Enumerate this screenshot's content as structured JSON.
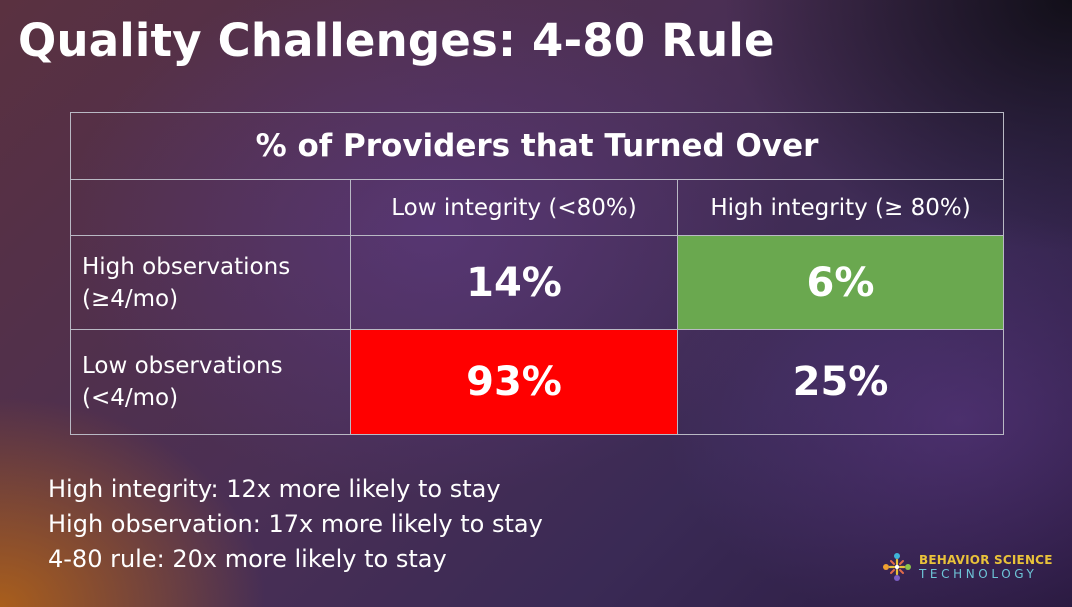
{
  "title": "Quality Challenges: 4-80 Rule",
  "table": {
    "heading": "% of Providers that Turned Over",
    "columns": [
      "Low integrity (<80%)",
      "High integrity (≥ 80%)"
    ],
    "rows": [
      {
        "label_line1": "High observations",
        "label_line2": "(≥4/mo)",
        "values": [
          "14%",
          "6%"
        ]
      },
      {
        "label_line1": "Low observations",
        "label_line2": "(<4/mo)",
        "values": [
          "93%",
          "25%"
        ]
      }
    ],
    "highlight_colors": {
      "green": "#6aa84f",
      "red": "#ff0000"
    }
  },
  "stats": [
    "High integrity: 12x more likely to stay",
    "High observation: 17x more likely to stay",
    "4-80 rule: 20x more likely to stay"
  ],
  "logo": {
    "line1": "BEHAVIOR SCIENCE",
    "line2": "TECHNOLOGY",
    "icon": "people-circle-logo-icon"
  }
}
